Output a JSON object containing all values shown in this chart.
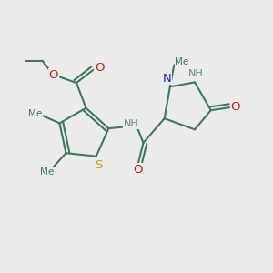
{
  "bg_color": "#ebebeb",
  "bond_color": "#3d7a5a",
  "S_color": "#c8a800",
  "N_color": "#1a1acc",
  "O_color": "#cc1a1a",
  "H_color": "#5a8888",
  "lw": 1.5,
  "fs": 8.0,
  "dpi": 100,
  "figsize": [
    3.0,
    3.0
  ],
  "xlim": [
    0,
    10
  ],
  "ylim": [
    0,
    10
  ]
}
